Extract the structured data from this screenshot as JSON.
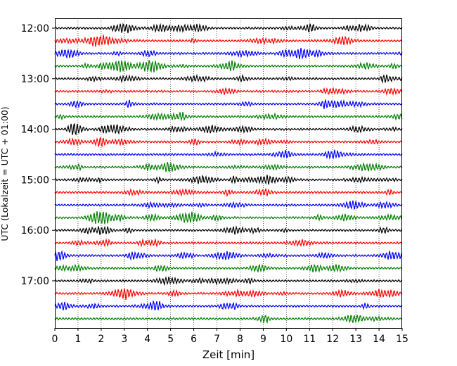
{
  "chart_data": {
    "type": "line",
    "subtype": "helicorder",
    "xlabel": "Zeit  [min]",
    "ylabel": "UTC (Lokalzeit = UTC + 01:00)",
    "xlim": [
      0,
      15
    ],
    "x_ticks": [
      0,
      1,
      2,
      3,
      4,
      5,
      6,
      7,
      8,
      9,
      10,
      11,
      12,
      13,
      14,
      15
    ],
    "x_tick_labels": [
      "0",
      "1",
      "2",
      "3",
      "4",
      "5",
      "6",
      "7",
      "8",
      "9",
      "10",
      "11",
      "12",
      "13",
      "14",
      "15"
    ],
    "grid": "vertical-dotted",
    "trace_interval_min": 15,
    "start_time": "12:00",
    "y_ticks": [
      {
        "label": "12:00",
        "trace_index": 0
      },
      {
        "label": "13:00",
        "trace_index": 4
      },
      {
        "label": "14:00",
        "trace_index": 8
      },
      {
        "label": "15:00",
        "trace_index": 12
      },
      {
        "label": "16:00",
        "trace_index": 16
      },
      {
        "label": "17:00",
        "trace_index": 20
      }
    ],
    "trace_count": 24,
    "trace_colors": [
      "#000000",
      "#ff0000",
      "#0000ff",
      "#008000"
    ]
  }
}
